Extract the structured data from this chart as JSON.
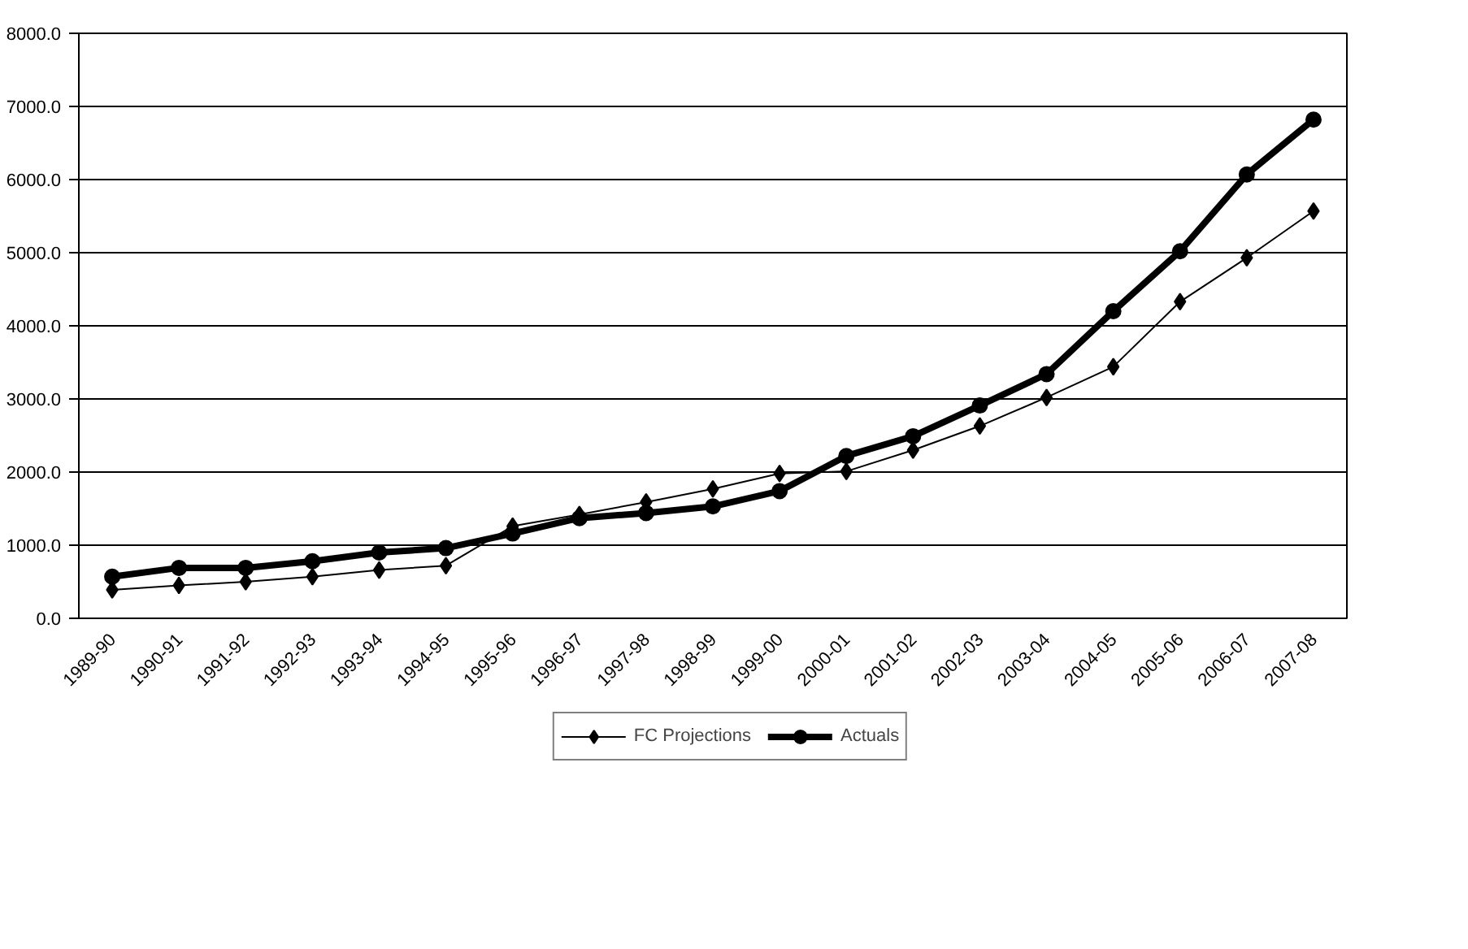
{
  "chart_data": {
    "type": "line",
    "categories": [
      "1989-90",
      "1990-91",
      "1991-92",
      "1992-93",
      "1993-94",
      "1994-95",
      "1995-96",
      "1996-97",
      "1997-98",
      "1998-99",
      "1999-00",
      "2000-01",
      "2001-02",
      "2002-03",
      "2003-04",
      "2004-05",
      "2005-06",
      "2006-07",
      "2007-08"
    ],
    "series": [
      {
        "name": "FC Projections",
        "color": "#000000",
        "marker": "diamond",
        "values": [
          390,
          450,
          500,
          570,
          660,
          720,
          1260,
          1420,
          1590,
          1770,
          1980,
          2010,
          2300,
          2630,
          3020,
          3440,
          4330,
          4930,
          5570
        ]
      },
      {
        "name": "Actuals",
        "color": "#000000",
        "marker": "circle",
        "values": [
          570,
          690,
          690,
          780,
          900,
          960,
          1160,
          1370,
          1440,
          1530,
          1740,
          2220,
          2490,
          2910,
          3340,
          4200,
          5020,
          6070,
          6820
        ]
      }
    ],
    "ylim": [
      0,
      8000
    ],
    "yticks": [
      {
        "value": 0,
        "label": "0.0"
      },
      {
        "value": 1000,
        "label": "1000.0"
      },
      {
        "value": 2000,
        "label": "2000.0"
      },
      {
        "value": 3000,
        "label": "3000.0"
      },
      {
        "value": 4000,
        "label": "4000.0"
      },
      {
        "value": 5000,
        "label": "5000.0"
      },
      {
        "value": 6000,
        "label": "6000.0"
      },
      {
        "value": 7000,
        "label": "7000.0"
      },
      {
        "value": 8000,
        "label": "8000.0"
      }
    ],
    "grid": "y",
    "legend": "bottom"
  }
}
